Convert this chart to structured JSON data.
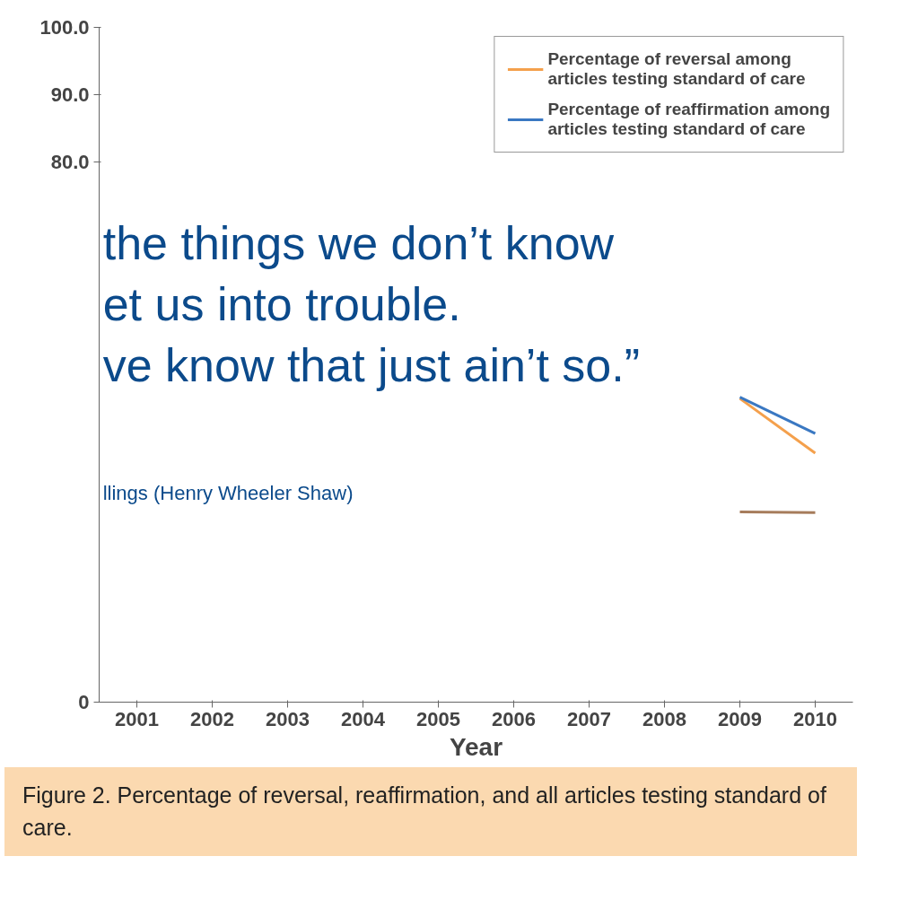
{
  "chart_data": {
    "type": "line",
    "xlabel": "Year",
    "categories": [
      "2001",
      "2002",
      "2003",
      "2004",
      "2005",
      "2006",
      "2007",
      "2008",
      "2009",
      "2010"
    ],
    "series": [
      {
        "name": "Percentage of reversal among articles testing standard of care",
        "color": "#f4a04c",
        "values": [
          null,
          null,
          null,
          null,
          null,
          null,
          null,
          null,
          45,
          36.9
        ]
      },
      {
        "name": "Percentage of reaffirmation among articles testing standard of care",
        "color": "#3a78c2",
        "values": [
          null,
          null,
          null,
          null,
          null,
          null,
          null,
          null,
          45.2,
          39.8
        ]
      },
      {
        "color": "#a67c5b",
        "values": [
          null,
          null,
          null,
          null,
          null,
          null,
          null,
          null,
          28.2,
          28.1
        ]
      }
    ],
    "ylim": [
      0,
      100
    ],
    "yticks": [
      0,
      {
        "value": 80,
        "label": "80.0"
      },
      {
        "value": 90,
        "label": "90.0"
      },
      {
        "value": 100,
        "label": "100.0"
      }
    ],
    "grid": false,
    "legend": "top right",
    "marker": "none",
    "line_style": "solid",
    "annotations": [
      "the things we don’t know",
      "et us into trouble.",
      "ve know that just ain’t so.”",
      "llings (Henry Wheeler Shaw)",
      "Figure 2. Percentage of reversal, reaffirmation, and all articles testing standard of care."
    ]
  }
}
